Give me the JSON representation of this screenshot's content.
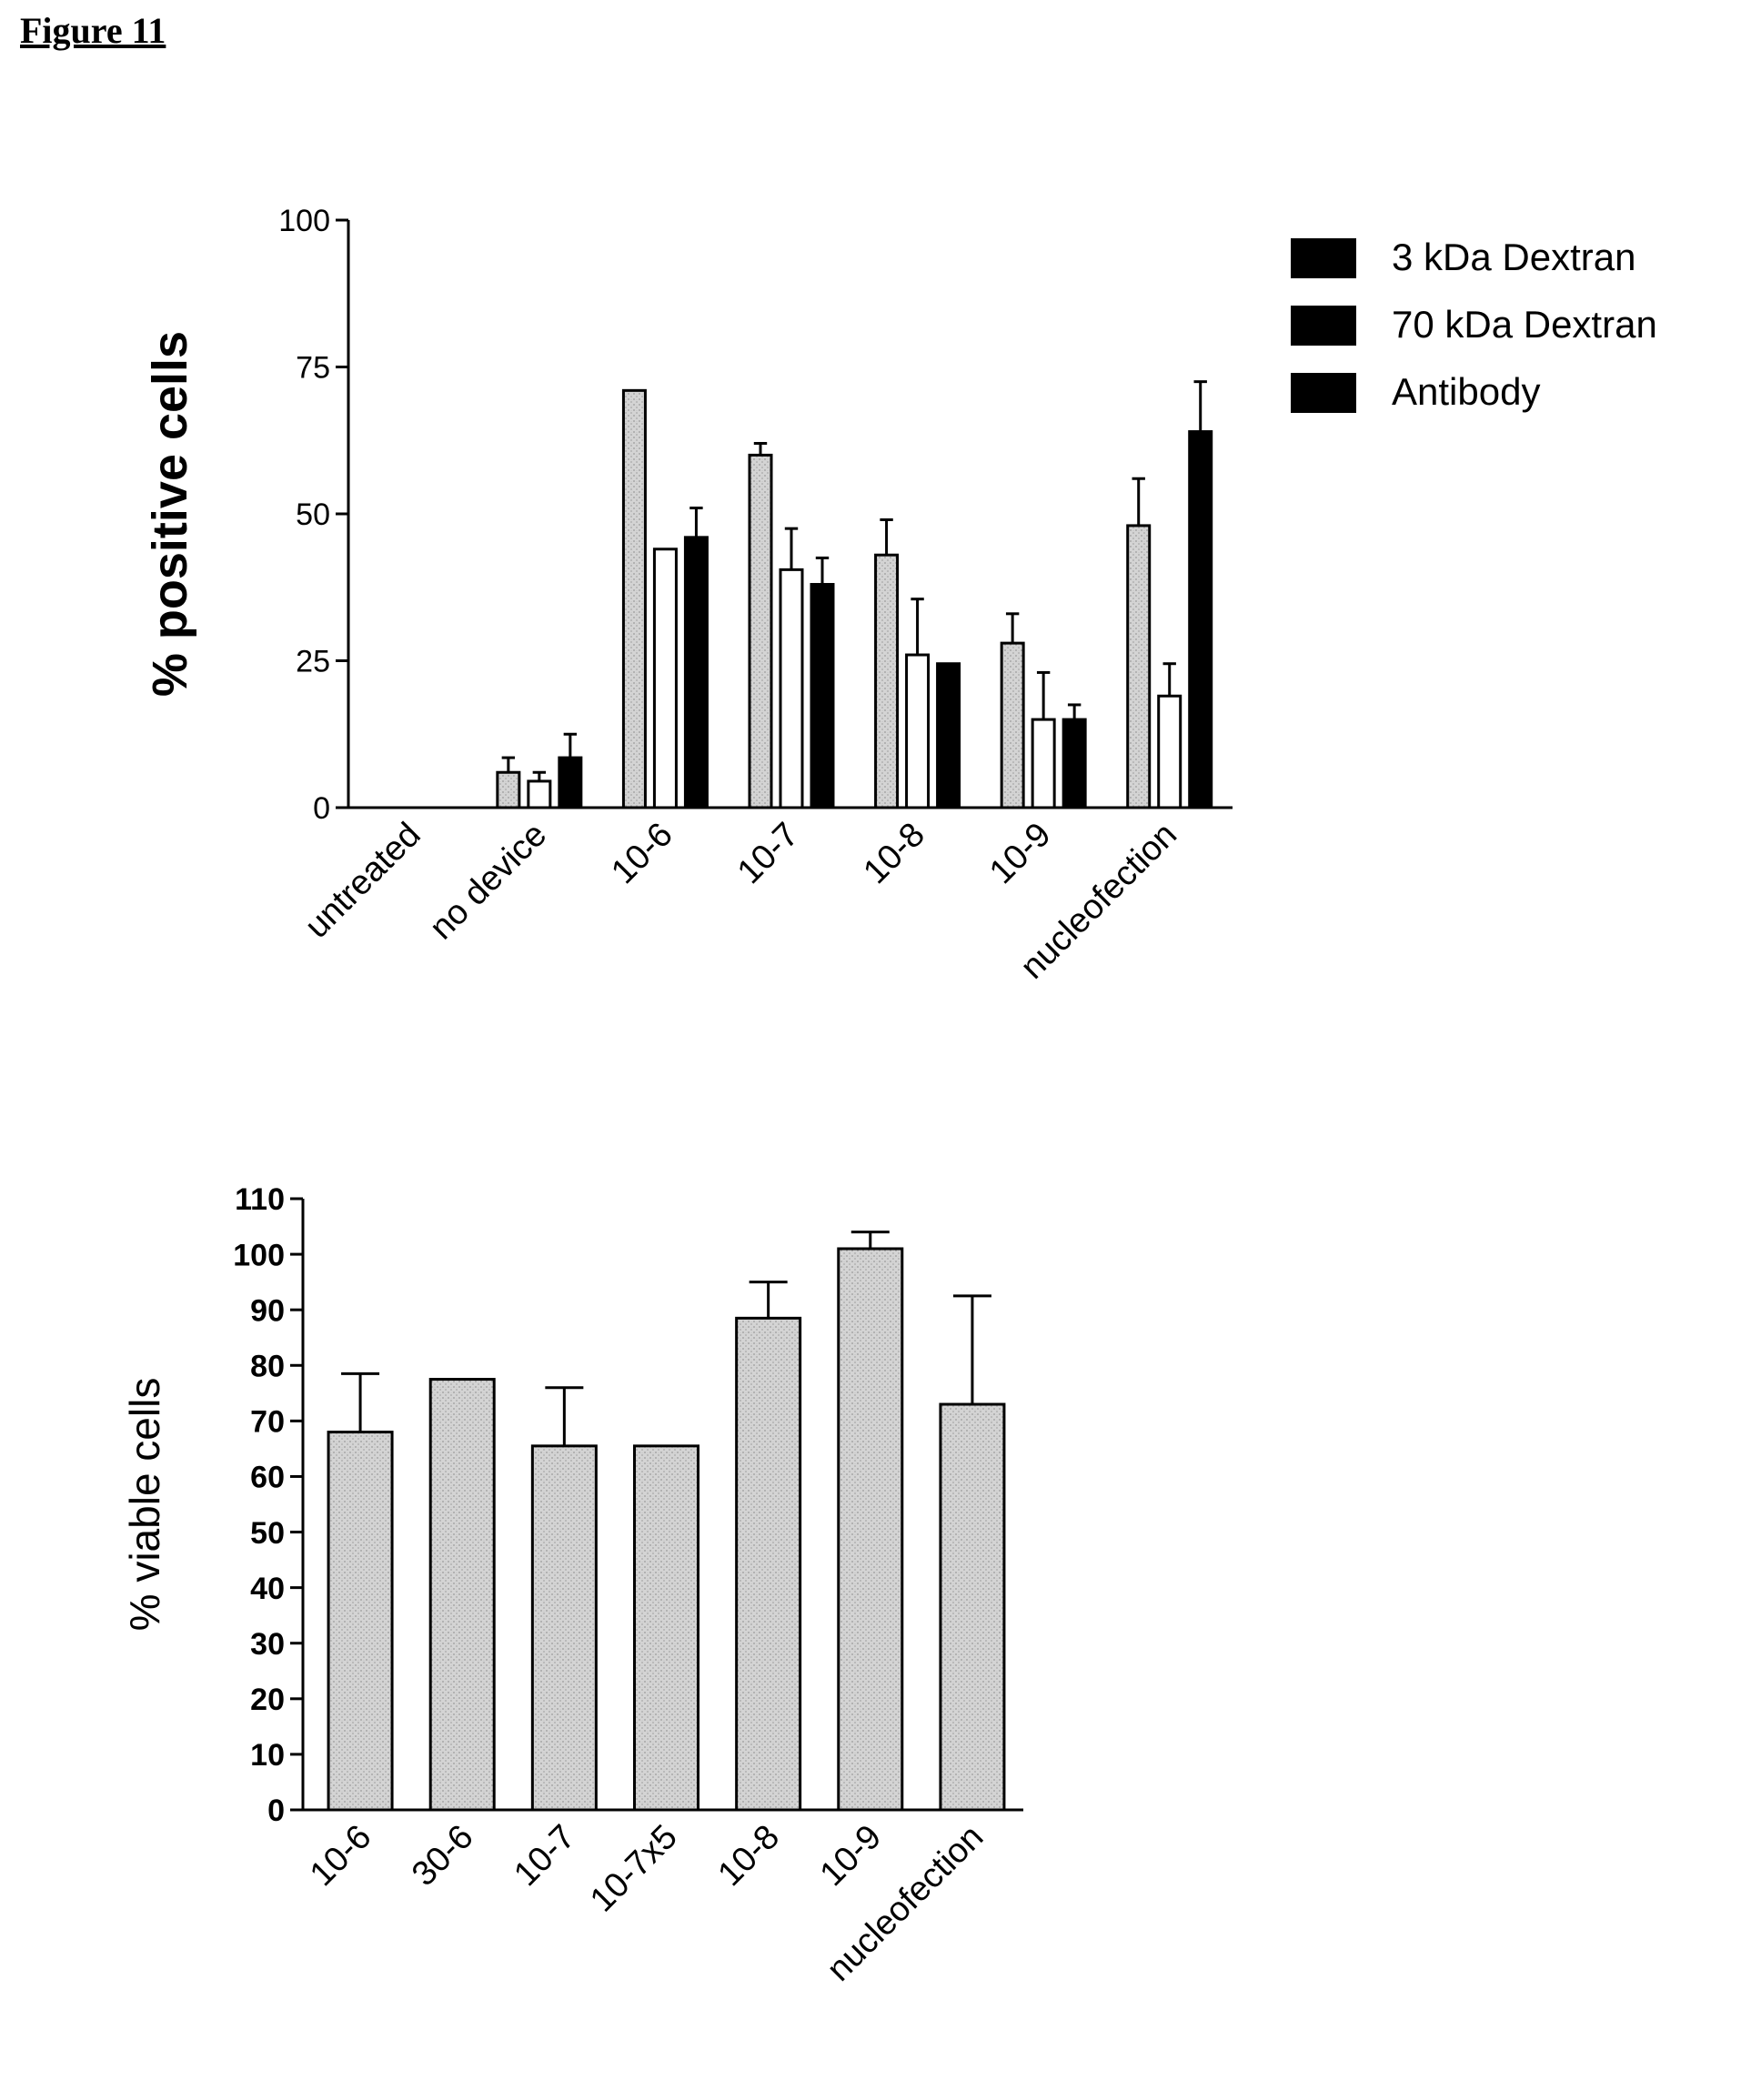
{
  "figure": {
    "title": "Figure 11"
  },
  "colors": {
    "stipple": "#c8c8c8",
    "open": "#ffffff",
    "solid": "#000000"
  },
  "chart_data": [
    {
      "type": "bar",
      "title": "",
      "xlabel": "",
      "ylabel": "% positive cells",
      "ylim": [
        0,
        100
      ],
      "yticks": [
        0,
        25,
        50,
        75,
        100
      ],
      "categories": [
        "untreated",
        "no device",
        "10-6",
        "10-7",
        "10-8",
        "10-9",
        "nucleofection"
      ],
      "legend_position": "top-right",
      "series": [
        {
          "name": "3 kDa Dextran",
          "fill": "stipple",
          "values": [
            0,
            6,
            71,
            60,
            43,
            28,
            48
          ],
          "errors": [
            0,
            2.5,
            0,
            2,
            6,
            5,
            8
          ]
        },
        {
          "name": "70 kDa Dextran",
          "fill": "open",
          "values": [
            0,
            4.5,
            44,
            40.5,
            26,
            15,
            19
          ],
          "errors": [
            0,
            1.5,
            0,
            7,
            9.5,
            8,
            5.5
          ]
        },
        {
          "name": "Antibody",
          "fill": "solid",
          "values": [
            0,
            8.5,
            46,
            38,
            24.5,
            15,
            64
          ],
          "errors": [
            0,
            4,
            5,
            4.5,
            0,
            2.5,
            8.5
          ]
        }
      ]
    },
    {
      "type": "bar",
      "title": "",
      "xlabel": "",
      "ylabel": "% viable cells",
      "ylim": [
        0,
        110
      ],
      "yticks": [
        0,
        10,
        20,
        30,
        40,
        50,
        60,
        70,
        80,
        90,
        100,
        110
      ],
      "categories": [
        "10-6",
        "30-6",
        "10-7",
        "10-7x5",
        "10-8",
        "10-9",
        "nucleofection"
      ],
      "series": [
        {
          "fill": "stipple",
          "values": [
            68,
            77.5,
            65.5,
            65.5,
            88.5,
            101,
            73
          ],
          "errors": [
            10.5,
            0,
            10.5,
            0,
            6.5,
            3,
            19.5
          ]
        }
      ]
    }
  ]
}
